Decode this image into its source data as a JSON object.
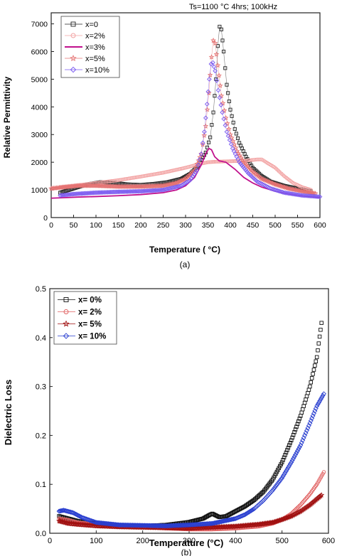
{
  "chart_data": [
    {
      "type": "line",
      "panel_label": "(a)",
      "annotation": "Ts=1100 °C 4hrs; 100kHz",
      "xlabel": "Temperature ( °C)",
      "ylabel": "Relative Permittivity",
      "xlim": [
        0,
        600
      ],
      "ylim": [
        0,
        7400
      ],
      "xticks": [
        0,
        50,
        100,
        150,
        200,
        250,
        300,
        350,
        400,
        450,
        500,
        550,
        600
      ],
      "yticks": [
        0,
        1000,
        2000,
        3000,
        4000,
        5000,
        6000,
        7000
      ],
      "legend_position": "top-left",
      "series": [
        {
          "name": "x=0",
          "color": "#222222",
          "marker": "square",
          "points": [
            [
              20,
              900
            ],
            [
              50,
              1050
            ],
            [
              80,
              1200
            ],
            [
              110,
              1280
            ],
            [
              140,
              1260
            ],
            [
              170,
              1200
            ],
            [
              200,
              1180
            ],
            [
              230,
              1220
            ],
            [
              260,
              1280
            ],
            [
              290,
              1400
            ],
            [
              310,
              1580
            ],
            [
              330,
              1900
            ],
            [
              345,
              2350
            ],
            [
              355,
              2900
            ],
            [
              362,
              3800
            ],
            [
              368,
              5000
            ],
            [
              372,
              6200
            ],
            [
              376,
              6900
            ],
            [
              380,
              6800
            ],
            [
              385,
              6000
            ],
            [
              392,
              4800
            ],
            [
              400,
              3900
            ],
            [
              410,
              3200
            ],
            [
              420,
              2700
            ],
            [
              435,
              2200
            ],
            [
              450,
              1800
            ],
            [
              470,
              1500
            ],
            [
              490,
              1300
            ],
            [
              520,
              1150
            ],
            [
              550,
              1050
            ],
            [
              580,
              950
            ]
          ]
        },
        {
          "name": "x=2%",
          "color": "#f2a0a0",
          "marker": "circle",
          "points": [
            [
              20,
              1100
            ],
            [
              50,
              1150
            ],
            [
              100,
              1250
            ],
            [
              150,
              1350
            ],
            [
              200,
              1480
            ],
            [
              250,
              1620
            ],
            [
              300,
              1800
            ],
            [
              330,
              1930
            ],
            [
              350,
              2000
            ],
            [
              370,
              2020
            ],
            [
              390,
              2030
            ],
            [
              410,
              2040
            ],
            [
              430,
              2050
            ],
            [
              450,
              2080
            ],
            [
              460,
              2100
            ],
            [
              470,
              2100
            ],
            [
              480,
              2000
            ],
            [
              500,
              1800
            ],
            [
              520,
              1500
            ],
            [
              540,
              1250
            ],
            [
              560,
              1100
            ],
            [
              580,
              1000
            ]
          ]
        },
        {
          "name": "x=3%",
          "color": "#c0108c",
          "marker": "none",
          "points": [
            [
              0,
              700
            ],
            [
              30,
              720
            ],
            [
              60,
              740
            ],
            [
              100,
              760
            ],
            [
              150,
              790
            ],
            [
              200,
              830
            ],
            [
              250,
              900
            ],
            [
              280,
              1000
            ],
            [
              300,
              1150
            ],
            [
              320,
              1450
            ],
            [
              335,
              1900
            ],
            [
              345,
              2300
            ],
            [
              352,
              2500
            ],
            [
              358,
              2450
            ],
            [
              365,
              2200
            ],
            [
              375,
              2050
            ],
            [
              390,
              2000
            ],
            [
              410,
              1750
            ],
            [
              430,
              1450
            ],
            [
              450,
              1250
            ],
            [
              470,
              1100
            ],
            [
              500,
              950
            ],
            [
              530,
              850
            ],
            [
              560,
              780
            ],
            [
              600,
              720
            ]
          ]
        },
        {
          "name": "x=5%",
          "color": "#e57373",
          "marker": "star",
          "points": [
            [
              0,
              1050
            ],
            [
              30,
              1100
            ],
            [
              60,
              1150
            ],
            [
              100,
              1150
            ],
            [
              150,
              1120
            ],
            [
              200,
              1120
            ],
            [
              250,
              1150
            ],
            [
              280,
              1250
            ],
            [
              300,
              1400
            ],
            [
              320,
              1700
            ],
            [
              335,
              2300
            ],
            [
              345,
              3300
            ],
            [
              352,
              4500
            ],
            [
              358,
              5800
            ],
            [
              362,
              6400
            ],
            [
              366,
              6300
            ],
            [
              372,
              5500
            ],
            [
              380,
              4400
            ],
            [
              390,
              3600
            ],
            [
              400,
              3000
            ],
            [
              415,
              2400
            ],
            [
              430,
              2000
            ],
            [
              450,
              1650
            ],
            [
              470,
              1400
            ],
            [
              500,
              1200
            ],
            [
              530,
              1050
            ],
            [
              560,
              950
            ],
            [
              590,
              870
            ]
          ]
        },
        {
          "name": "x=10%",
          "color": "#7a5af0",
          "marker": "diamond",
          "points": [
            [
              20,
              800
            ],
            [
              50,
              850
            ],
            [
              100,
              900
            ],
            [
              150,
              930
            ],
            [
              200,
              950
            ],
            [
              250,
              1000
            ],
            [
              290,
              1150
            ],
            [
              310,
              1350
            ],
            [
              325,
              1700
            ],
            [
              335,
              2300
            ],
            [
              342,
              3100
            ],
            [
              348,
              4100
            ],
            [
              353,
              5000
            ],
            [
              357,
              5550
            ],
            [
              361,
              5600
            ],
            [
              366,
              5300
            ],
            [
              373,
              4600
            ],
            [
              382,
              3800
            ],
            [
              392,
              3100
            ],
            [
              405,
              2500
            ],
            [
              420,
              2000
            ],
            [
              440,
              1600
            ],
            [
              460,
              1300
            ],
            [
              490,
              1050
            ],
            [
              520,
              900
            ],
            [
              560,
              800
            ],
            [
              600,
              750
            ]
          ]
        }
      ]
    },
    {
      "type": "scatter",
      "panel_label": "(b)",
      "xlabel": "Temperature (°C)",
      "ylabel": "Dielectric Loss",
      "xlim": [
        0,
        600
      ],
      "ylim": [
        0,
        0.5
      ],
      "xticks": [
        0,
        100,
        200,
        300,
        400,
        500,
        600
      ],
      "yticks": [
        0.0,
        0.1,
        0.2,
        0.3,
        0.4,
        0.5
      ],
      "legend_position": "top-left",
      "series": [
        {
          "name": "x= 0%",
          "color": "#111111",
          "marker": "square",
          "points": [
            [
              20,
              0.035
            ],
            [
              40,
              0.03
            ],
            [
              60,
              0.025
            ],
            [
              100,
              0.02
            ],
            [
              150,
              0.016
            ],
            [
              200,
              0.015
            ],
            [
              250,
              0.017
            ],
            [
              300,
              0.023
            ],
            [
              330,
              0.03
            ],
            [
              345,
              0.038
            ],
            [
              350,
              0.04
            ],
            [
              365,
              0.033
            ],
            [
              380,
              0.035
            ],
            [
              400,
              0.045
            ],
            [
              420,
              0.055
            ],
            [
              440,
              0.068
            ],
            [
              460,
              0.085
            ],
            [
              480,
              0.11
            ],
            [
              500,
              0.145
            ],
            [
              520,
              0.19
            ],
            [
              540,
              0.24
            ],
            [
              560,
              0.3
            ],
            [
              575,
              0.36
            ],
            [
              585,
              0.43
            ]
          ]
        },
        {
          "name": "x= 2%",
          "color": "#e06060",
          "marker": "circle",
          "points": [
            [
              20,
              0.03
            ],
            [
              40,
              0.027
            ],
            [
              60,
              0.022
            ],
            [
              100,
              0.018
            ],
            [
              150,
              0.015
            ],
            [
              200,
              0.013
            ],
            [
              250,
              0.01
            ],
            [
              300,
              0.008
            ],
            [
              350,
              0.008
            ],
            [
              400,
              0.01
            ],
            [
              450,
              0.014
            ],
            [
              480,
              0.02
            ],
            [
              500,
              0.028
            ],
            [
              520,
              0.04
            ],
            [
              540,
              0.058
            ],
            [
              560,
              0.08
            ],
            [
              575,
              0.1
            ],
            [
              590,
              0.125
            ]
          ]
        },
        {
          "name": "x= 5%",
          "color": "#a01010",
          "marker": "star",
          "points": [
            [
              20,
              0.025
            ],
            [
              40,
              0.02
            ],
            [
              60,
              0.018
            ],
            [
              100,
              0.015
            ],
            [
              150,
              0.013
            ],
            [
              200,
              0.012
            ],
            [
              250,
              0.011
            ],
            [
              300,
              0.01
            ],
            [
              350,
              0.012
            ],
            [
              400,
              0.014
            ],
            [
              450,
              0.018
            ],
            [
              480,
              0.022
            ],
            [
              500,
              0.028
            ],
            [
              520,
              0.035
            ],
            [
              540,
              0.045
            ],
            [
              560,
              0.058
            ],
            [
              575,
              0.07
            ],
            [
              585,
              0.078
            ]
          ]
        },
        {
          "name": "x= 10%",
          "color": "#2a3fd0",
          "marker": "diamond",
          "points": [
            [
              20,
              0.045
            ],
            [
              30,
              0.047
            ],
            [
              50,
              0.042
            ],
            [
              70,
              0.032
            ],
            [
              100,
              0.022
            ],
            [
              150,
              0.017
            ],
            [
              200,
              0.016
            ],
            [
              250,
              0.015
            ],
            [
              300,
              0.017
            ],
            [
              350,
              0.02
            ],
            [
              400,
              0.03
            ],
            [
              420,
              0.038
            ],
            [
              440,
              0.05
            ],
            [
              460,
              0.067
            ],
            [
              480,
              0.088
            ],
            [
              500,
              0.113
            ],
            [
              520,
              0.145
            ],
            [
              540,
              0.18
            ],
            [
              560,
              0.225
            ],
            [
              575,
              0.26
            ],
            [
              590,
              0.285
            ]
          ]
        }
      ]
    }
  ]
}
